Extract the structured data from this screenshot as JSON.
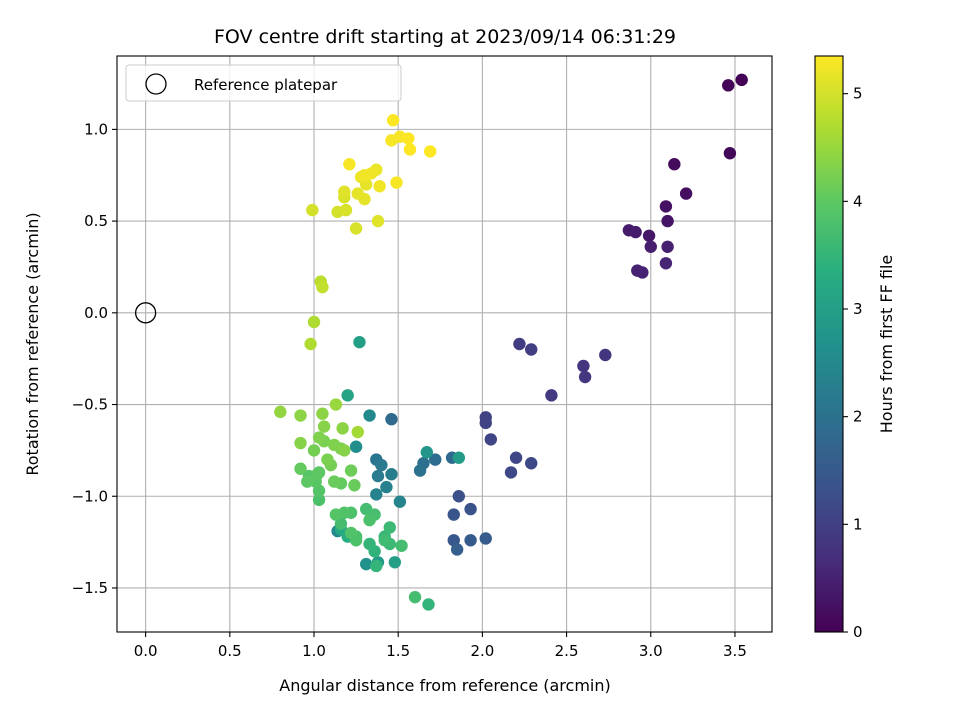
{
  "chart_data": {
    "type": "scatter",
    "title": "FOV centre drift starting at 2023/09/14 06:31:29",
    "xlabel": "Angular distance from reference (arcmin)",
    "ylabel": "Rotation from reference (arcmin)",
    "xlim": [
      -0.17,
      3.72
    ],
    "ylim": [
      -1.74,
      1.4
    ],
    "x_ticks": [
      0.0,
      0.5,
      1.0,
      1.5,
      2.0,
      2.5,
      3.0,
      3.5
    ],
    "x_tick_labels": [
      "0.0",
      "0.5",
      "1.0",
      "1.5",
      "2.0",
      "2.5",
      "3.0",
      "3.5"
    ],
    "y_ticks": [
      -1.5,
      -1.0,
      -0.5,
      0.0,
      0.5,
      1.0
    ],
    "y_tick_labels": [
      "−1.5",
      "−1.0",
      "−0.5",
      "0.0",
      "0.5",
      "1.0"
    ],
    "grid": true,
    "legend": {
      "placement": "top-left",
      "entries": [
        "Reference platepar"
      ]
    },
    "reference_point": {
      "x": 0.0,
      "y": 0.0,
      "label": "Reference platepar"
    },
    "colorbar": {
      "label": "Hours from first FF file",
      "colormap": "viridis",
      "range": [
        0,
        5.35
      ],
      "ticks": [
        0,
        1,
        2,
        3,
        4,
        5
      ],
      "tick_labels": [
        "0",
        "1",
        "2",
        "3",
        "4",
        "5"
      ]
    },
    "points": [
      [
        3.54,
        1.27,
        0.03
      ],
      [
        3.46,
        1.24,
        0.05
      ],
      [
        3.47,
        0.87,
        0.1
      ],
      [
        3.14,
        0.81,
        0.15
      ],
      [
        3.21,
        0.65,
        0.2
      ],
      [
        3.09,
        0.58,
        0.25
      ],
      [
        3.1,
        0.5,
        0.3
      ],
      [
        2.99,
        0.42,
        0.35
      ],
      [
        2.87,
        0.45,
        0.4
      ],
      [
        2.91,
        0.44,
        0.42
      ],
      [
        3.0,
        0.36,
        0.45
      ],
      [
        3.1,
        0.36,
        0.48
      ],
      [
        2.92,
        0.23,
        0.5
      ],
      [
        2.95,
        0.22,
        0.53
      ],
      [
        3.09,
        0.27,
        0.55
      ],
      [
        2.6,
        -0.29,
        0.8
      ],
      [
        2.61,
        -0.35,
        0.85
      ],
      [
        2.73,
        -0.23,
        0.82
      ],
      [
        2.41,
        -0.45,
        0.9
      ],
      [
        2.22,
        -0.17,
        0.95
      ],
      [
        2.29,
        -0.2,
        0.98
      ],
      [
        2.02,
        -0.57,
        1.05
      ],
      [
        2.02,
        -0.6,
        1.08
      ],
      [
        2.05,
        -0.69,
        1.1
      ],
      [
        2.2,
        -0.79,
        1.12
      ],
      [
        2.17,
        -0.87,
        1.15
      ],
      [
        2.29,
        -0.82,
        1.18
      ],
      [
        1.86,
        -1.0,
        1.3
      ],
      [
        1.93,
        -1.07,
        1.35
      ],
      [
        1.83,
        -1.1,
        1.4
      ],
      [
        1.83,
        -1.24,
        1.45
      ],
      [
        1.93,
        -1.24,
        1.5
      ],
      [
        2.02,
        -1.23,
        1.55
      ],
      [
        1.85,
        -1.29,
        1.6
      ],
      [
        1.82,
        -0.79,
        1.8
      ],
      [
        1.72,
        -0.8,
        1.9
      ],
      [
        1.65,
        -0.82,
        1.95
      ],
      [
        1.63,
        -0.86,
        2.0
      ],
      [
        1.46,
        -0.58,
        1.85
      ],
      [
        1.37,
        -0.8,
        2.1
      ],
      [
        1.4,
        -0.83,
        2.15
      ],
      [
        1.38,
        -0.89,
        2.2
      ],
      [
        1.46,
        -0.88,
        2.25
      ],
      [
        1.43,
        -0.95,
        2.3
      ],
      [
        1.37,
        -0.99,
        2.35
      ],
      [
        1.51,
        -1.03,
        2.4
      ],
      [
        1.33,
        -0.56,
        2.5
      ],
      [
        1.25,
        -0.73,
        2.6
      ],
      [
        1.67,
        -0.76,
        2.8
      ],
      [
        1.86,
        -0.79,
        2.9
      ],
      [
        1.27,
        -0.16,
        3.0
      ],
      [
        1.31,
        -1.37,
        2.7
      ],
      [
        1.38,
        -1.36,
        2.9
      ],
      [
        1.48,
        -1.36,
        3.0
      ],
      [
        1.14,
        -1.19,
        2.5
      ],
      [
        1.2,
        -0.45,
        3.1
      ],
      [
        1.16,
        -1.18,
        3.2
      ],
      [
        1.2,
        -1.22,
        3.3
      ],
      [
        1.37,
        -1.38,
        3.5
      ],
      [
        1.36,
        -1.3,
        3.45
      ],
      [
        1.33,
        -1.26,
        3.5
      ],
      [
        1.42,
        -1.22,
        3.55
      ],
      [
        1.45,
        -1.26,
        3.6
      ],
      [
        1.45,
        -1.17,
        3.6
      ],
      [
        1.42,
        -1.24,
        3.65
      ],
      [
        1.52,
        -1.27,
        3.7
      ],
      [
        1.6,
        -1.55,
        3.7
      ],
      [
        1.68,
        -1.59,
        3.5
      ],
      [
        1.31,
        -1.07,
        3.7
      ],
      [
        1.36,
        -1.1,
        3.75
      ],
      [
        1.33,
        -1.13,
        3.8
      ],
      [
        1.25,
        -1.22,
        3.75
      ],
      [
        1.22,
        -1.09,
        3.8
      ],
      [
        1.18,
        -1.09,
        3.85
      ],
      [
        1.16,
        -1.15,
        3.7
      ],
      [
        1.13,
        -1.1,
        3.9
      ],
      [
        1.25,
        -1.24,
        3.8
      ],
      [
        1.22,
        -1.2,
        3.85
      ],
      [
        1.03,
        -1.02,
        3.8
      ],
      [
        1.03,
        -0.97,
        3.9
      ],
      [
        1.01,
        -0.92,
        3.95
      ],
      [
        1.02,
        -0.88,
        4.0
      ],
      [
        0.97,
        -0.89,
        3.9
      ],
      [
        0.96,
        -0.92,
        4.0
      ],
      [
        0.92,
        -0.85,
        4.05
      ],
      [
        1.03,
        -0.87,
        4.0
      ],
      [
        1.12,
        -0.92,
        4.1
      ],
      [
        1.16,
        -0.93,
        4.05
      ],
      [
        1.24,
        -0.94,
        4.1
      ],
      [
        1.22,
        -0.86,
        4.15
      ],
      [
        1.1,
        -0.83,
        4.2
      ],
      [
        1.08,
        -0.8,
        4.25
      ],
      [
        1.0,
        -0.75,
        4.2
      ],
      [
        1.06,
        -0.7,
        4.25
      ],
      [
        1.03,
        -0.68,
        4.3
      ],
      [
        1.12,
        -0.72,
        4.3
      ],
      [
        1.16,
        -0.74,
        4.25
      ],
      [
        1.18,
        -0.75,
        4.35
      ],
      [
        1.06,
        -0.62,
        4.35
      ],
      [
        1.17,
        -0.63,
        4.4
      ],
      [
        1.05,
        -0.55,
        4.4
      ],
      [
        0.92,
        -0.56,
        4.4
      ],
      [
        0.8,
        -0.54,
        4.45
      ],
      [
        0.92,
        -0.71,
        4.35
      ],
      [
        1.13,
        -0.5,
        4.5
      ],
      [
        1.26,
        -0.65,
        4.6
      ],
      [
        1.0,
        -0.05,
        4.7
      ],
      [
        0.98,
        -0.17,
        4.7
      ],
      [
        1.04,
        0.17,
        4.8
      ],
      [
        1.05,
        0.14,
        4.85
      ],
      [
        0.99,
        0.56,
        5.0
      ],
      [
        1.14,
        0.55,
        5.0
      ],
      [
        1.19,
        0.56,
        5.05
      ],
      [
        1.25,
        0.46,
        5.05
      ],
      [
        1.38,
        0.5,
        5.1
      ],
      [
        1.18,
        0.66,
        5.1
      ],
      [
        1.18,
        0.63,
        5.05
      ],
      [
        1.26,
        0.65,
        5.15
      ],
      [
        1.3,
        0.62,
        5.15
      ],
      [
        1.31,
        0.7,
        5.15
      ],
      [
        1.28,
        0.74,
        5.2
      ],
      [
        1.34,
        0.76,
        5.25
      ],
      [
        1.37,
        0.78,
        5.2
      ],
      [
        1.39,
        0.69,
        5.25
      ],
      [
        1.49,
        0.71,
        5.3
      ],
      [
        1.21,
        0.81,
        5.3
      ],
      [
        1.3,
        0.75,
        5.25
      ],
      [
        1.46,
        0.94,
        5.3
      ],
      [
        1.51,
        0.96,
        5.3
      ],
      [
        1.56,
        0.95,
        5.35
      ],
      [
        1.57,
        0.89,
        5.35
      ],
      [
        1.69,
        0.88,
        5.35
      ],
      [
        1.47,
        1.05,
        5.35
      ]
    ]
  }
}
